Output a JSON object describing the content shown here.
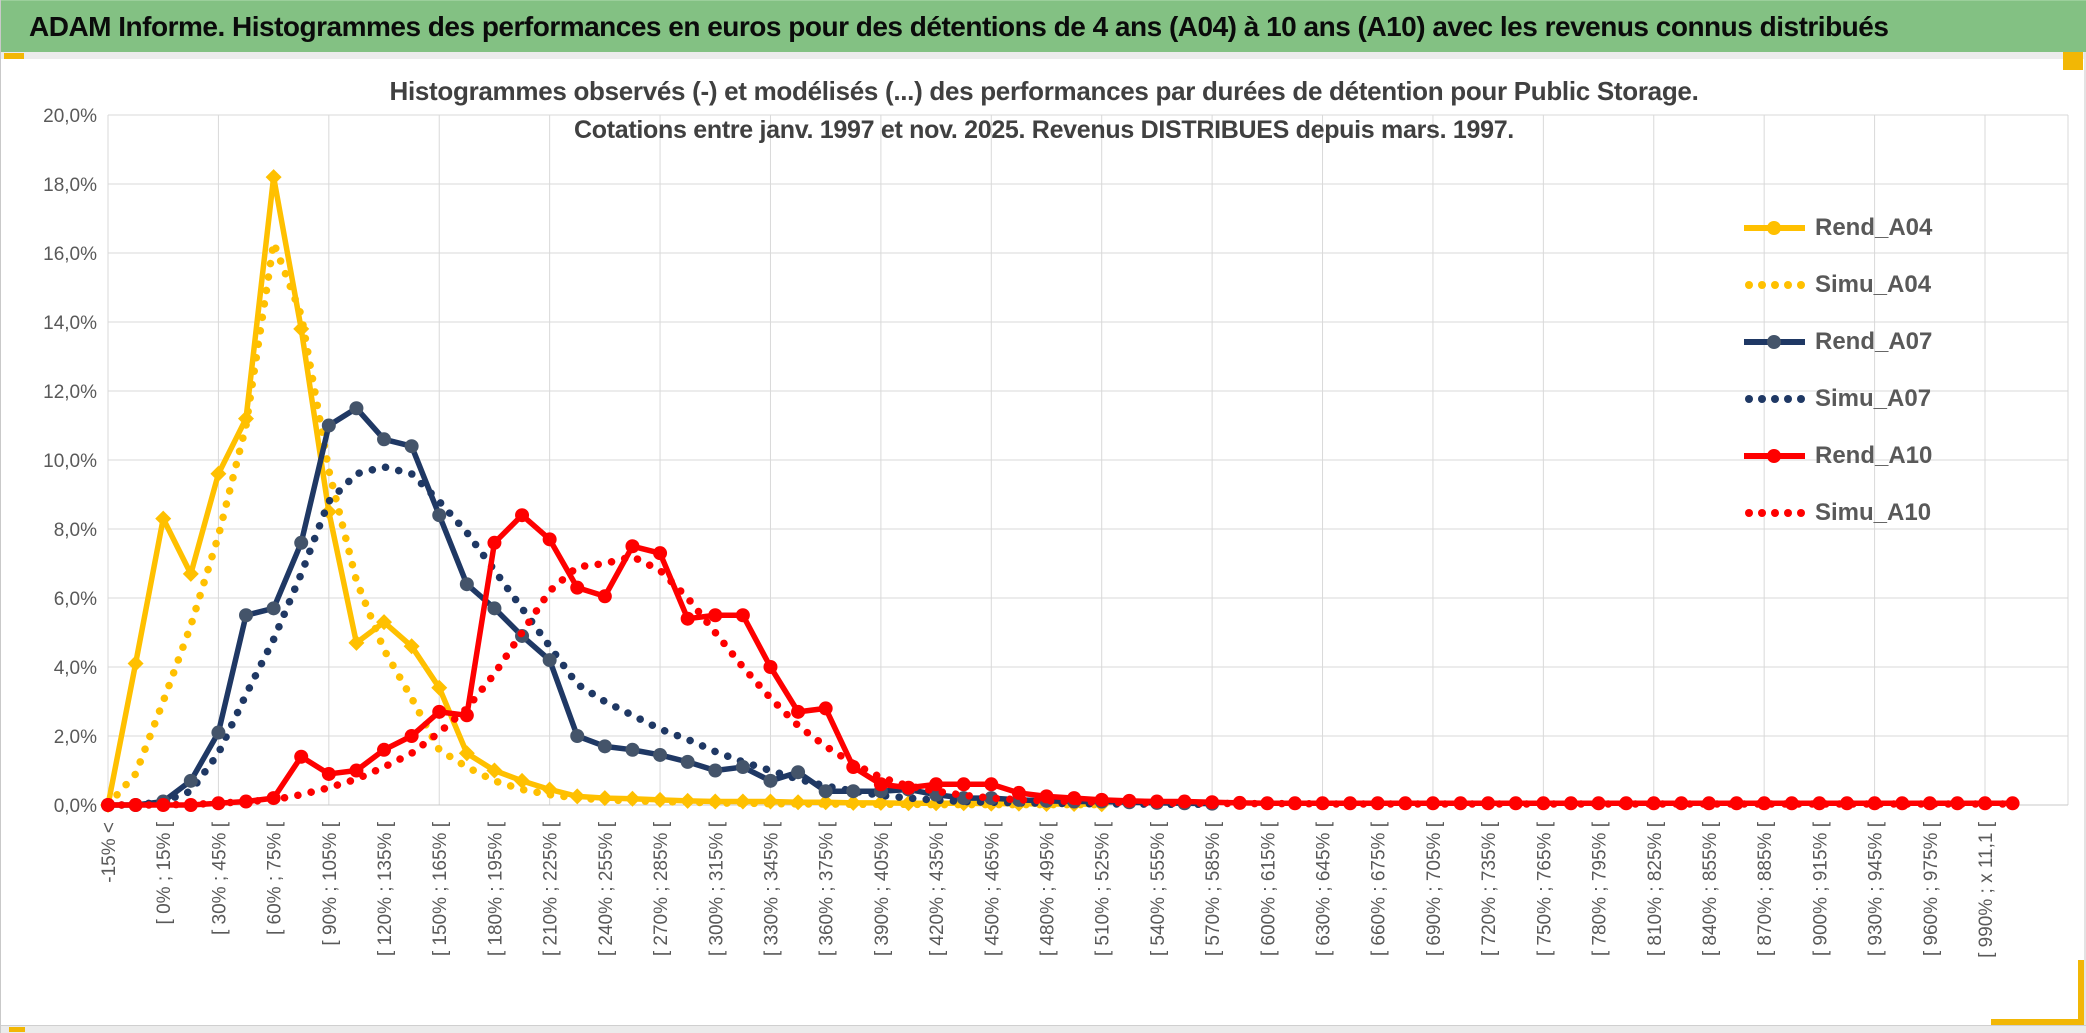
{
  "window": {
    "header_title": "ADAM Informe. Histogrammes des performances en euros pour des détentions de 4 ans (A04) à 10 ans (A10) avec les revenus connus distribués"
  },
  "accent_colors": {
    "header_green": "#83C183",
    "scrollbar_gold": "#F2B705"
  },
  "chart_data": {
    "type": "line",
    "title_line1": "Histogrammes observés (-) et modélisés (...) des performances par durées de détention pour Public Storage.",
    "title_line2": "Cotations entre janv. 1997 et nov. 2025. Revenus DISTRIBUES depuis mars. 1997.",
    "ylabel": "",
    "xlabel": "",
    "ylim": [
      0,
      20
    ],
    "grid": "horizontal every 2%, vertical every 2nd label",
    "legend_position": "inside-right",
    "y_ticks": [
      "0,0%",
      "2,0%",
      "4,0%",
      "6,0%",
      "8,0%",
      "10,0%",
      "12,0%",
      "14,0%",
      "16,0%",
      "18,0%",
      "20,0%"
    ],
    "x_labels": [
      "-15% <",
      "[ 0% ; 15% [",
      "[ 30% ; 45% [",
      "[ 60% ; 75% [",
      "[ 90% ; 105% [",
      "[ 120% ; 135% [",
      "[ 150% ; 165% [",
      "[ 180% ; 195% [",
      "[ 210% ; 225% [",
      "[ 240% ; 255% [",
      "[ 270% ; 285% [",
      "[ 300% ; 315% [",
      "[ 330% ; 345% [",
      "[ 360% ; 375% [",
      "[ 390% ; 405% [",
      "[ 420% ; 435% [",
      "[ 450% ; 465% [",
      "[ 480% ; 495% [",
      "[ 510% ; 525% [",
      "[ 540% ; 555% [",
      "[ 570% ; 585% [",
      "[ 600% ; 615% [",
      "[ 630% ; 645% [",
      "[ 660% ; 675% [",
      "[ 690% ; 705% [",
      "[ 720% ; 735% [",
      "[ 750% ; 765% [",
      "[ 780% ; 795% [",
      "[ 810% ; 825% [",
      "[ 840% ; 855% [",
      "[ 870% ; 885% [",
      "[ 900% ; 915% [",
      "[ 930% ; 945% [",
      "[ 960% ; 975% [",
      "[ 990% ; x 11,1 ["
    ],
    "x_label_every_n_bins": 2,
    "series": [
      {
        "name": "Rend_A04",
        "color": "#FFC000",
        "style": "solid",
        "marker": "diamond",
        "marker_color": "#FFC000",
        "values": [
          0,
          4.1,
          8.3,
          6.7,
          9.6,
          11.2,
          18.2,
          13.8,
          8.5,
          4.7,
          5.3,
          4.6,
          3.4,
          1.5,
          1.0,
          0.7,
          0.45,
          0.25,
          0.2,
          0.18,
          0.15,
          0.12,
          0.1,
          0.1,
          0.1,
          0.08,
          0.08,
          0.06,
          0.06,
          0.05,
          0.05,
          0.05,
          0.04,
          0.04,
          0.03,
          0.03,
          0.02,
          null,
          null,
          null,
          null,
          null,
          null,
          null,
          null,
          null,
          null,
          null,
          null,
          null,
          null,
          null,
          null,
          null,
          null,
          null,
          null,
          null,
          null,
          null,
          null,
          null,
          null,
          null,
          null,
          null,
          null,
          null,
          null,
          null
        ]
      },
      {
        "name": "Simu_A04",
        "color": "#FFC000",
        "style": "dotted",
        "marker": "none",
        "marker_color": "#FFC000",
        "values": [
          0,
          0.9,
          3.0,
          5.2,
          7.8,
          11.0,
          16.3,
          14.2,
          9.7,
          6.5,
          4.5,
          3.1,
          1.6,
          1.1,
          0.7,
          0.45,
          0.3,
          0.2,
          0.15,
          0.12,
          0.1,
          0.08,
          0.06,
          0.05,
          0.04,
          0.03,
          0.03,
          0.02,
          0.02,
          0.02,
          0.01,
          0.01,
          0.01,
          0.01,
          0.01,
          0.01,
          0.01,
          null,
          null,
          null,
          null,
          null,
          null,
          null,
          null,
          null,
          null,
          null,
          null,
          null,
          null,
          null,
          null,
          null,
          null,
          null,
          null,
          null,
          null,
          null,
          null,
          null,
          null,
          null,
          null,
          null,
          null,
          null,
          null,
          null
        ]
      },
      {
        "name": "Rend_A07",
        "color": "#1F3864",
        "style": "solid",
        "marker": "circle",
        "marker_color": "#44546A",
        "values": [
          0,
          0,
          0.1,
          0.7,
          2.1,
          5.5,
          5.7,
          7.6,
          11.0,
          11.5,
          10.6,
          10.4,
          8.4,
          6.4,
          5.7,
          4.9,
          4.2,
          2.0,
          1.7,
          1.6,
          1.45,
          1.25,
          1.0,
          1.1,
          0.7,
          0.95,
          0.4,
          0.4,
          0.4,
          0.45,
          0.3,
          0.2,
          0.2,
          0.15,
          0.12,
          0.1,
          0.1,
          0.08,
          0.06,
          0.05,
          0.04,
          null,
          null,
          null,
          null,
          null,
          null,
          null,
          null,
          null,
          null,
          null,
          null,
          null,
          null,
          null,
          null,
          null,
          null,
          null,
          null,
          null,
          null,
          null,
          null,
          null,
          null,
          null,
          null,
          null
        ]
      },
      {
        "name": "Simu_A07",
        "color": "#1F3864",
        "style": "dotted",
        "marker": "none",
        "marker_color": "#1F3864",
        "values": [
          0,
          0,
          0.1,
          0.4,
          1.5,
          3.2,
          4.8,
          6.7,
          8.8,
          9.6,
          9.8,
          9.6,
          8.8,
          7.9,
          6.8,
          5.7,
          4.6,
          3.5,
          3.0,
          2.6,
          2.2,
          1.9,
          1.55,
          1.25,
          1.0,
          0.75,
          0.55,
          0.4,
          0.28,
          0.2,
          0.14,
          0.1,
          0.08,
          0.06,
          0.05,
          0.04,
          0.03,
          0.03,
          0.02,
          0.02,
          0.02,
          null,
          null,
          null,
          null,
          null,
          null,
          null,
          null,
          null,
          null,
          null,
          null,
          null,
          null,
          null,
          null,
          null,
          null,
          null,
          null,
          null,
          null,
          null,
          null,
          null,
          null,
          null,
          null,
          null
        ]
      },
      {
        "name": "Rend_A10",
        "color": "#FE0000",
        "style": "solid",
        "marker": "circle",
        "marker_color": "#FE0000",
        "values": [
          0,
          0,
          0,
          0,
          0.05,
          0.1,
          0.2,
          1.4,
          0.9,
          1.0,
          1.6,
          2.0,
          2.7,
          2.6,
          7.6,
          8.4,
          7.7,
          6.3,
          6.05,
          7.5,
          7.3,
          5.4,
          5.5,
          5.5,
          4.0,
          2.7,
          2.8,
          1.1,
          0.6,
          0.5,
          0.6,
          0.6,
          0.6,
          0.35,
          0.25,
          0.2,
          0.15,
          0.12,
          0.1,
          0.1,
          0.08,
          0.06,
          0.05,
          0.05,
          0.05,
          0.05,
          0.05,
          0.05,
          0.05,
          0.05,
          0.05,
          0.05,
          0.05,
          0.05,
          0.05,
          0.05,
          0.05,
          0.05,
          0.05,
          0.05,
          0.05,
          0.05,
          0.05,
          0.05,
          0.05,
          0.05,
          0.05,
          0.05,
          0.05,
          0.05
        ]
      },
      {
        "name": "Simu_A10",
        "color": "#FE0000",
        "style": "dotted",
        "marker": "none",
        "marker_color": "#FE0000",
        "values": [
          0,
          0,
          0,
          0.02,
          0.05,
          0.1,
          0.15,
          0.3,
          0.5,
          0.75,
          1.1,
          1.5,
          2.1,
          2.8,
          3.8,
          5.0,
          6.2,
          6.9,
          7.0,
          7.2,
          6.8,
          6.0,
          5.0,
          4.0,
          3.1,
          2.3,
          1.7,
          1.2,
          0.8,
          0.55,
          0.4,
          0.28,
          0.2,
          0.15,
          0.12,
          0.1,
          0.08,
          0.07,
          0.06,
          0.05,
          0.05,
          0.04,
          0.04,
          0.04,
          0.03,
          0.03,
          0.03,
          0.03,
          0.03,
          0.03,
          0.03,
          0.03,
          0.03,
          0.03,
          0.03,
          0.03,
          0.03,
          0.03,
          0.03,
          0.03,
          0.03,
          0.03,
          0.03,
          0.03,
          0.03,
          0.03,
          0.03,
          0.03,
          0.03,
          0.03
        ]
      }
    ]
  }
}
